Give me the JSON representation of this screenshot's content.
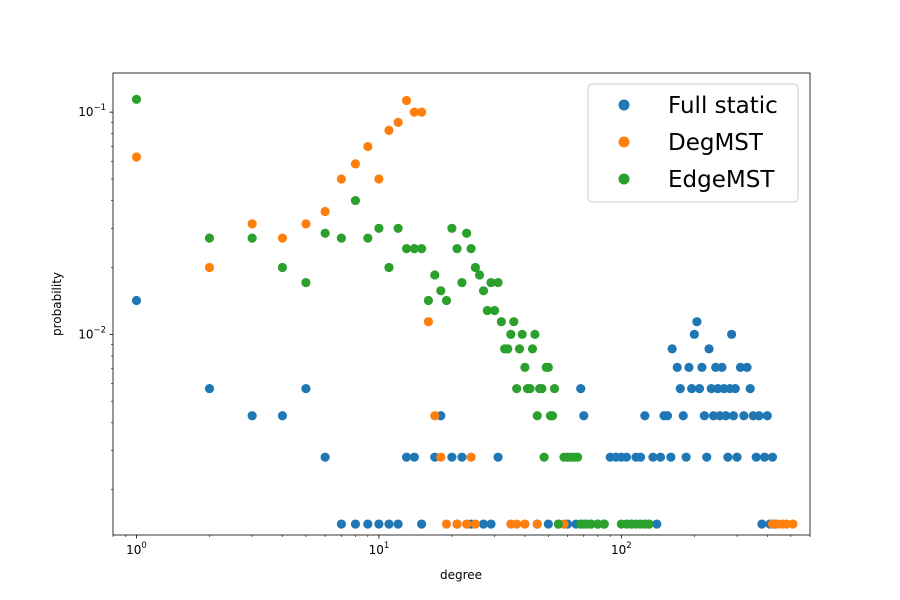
{
  "chart_data": {
    "type": "scatter",
    "title": "",
    "xlabel": "degree",
    "ylabel": "probability",
    "xscale": "log",
    "yscale": "log",
    "xlim": [
      0.8,
      600
    ],
    "ylim": [
      0.00125,
      0.15
    ],
    "grid": false,
    "legend_position": "top-right",
    "x_tick_labels": [
      {
        "value": 1,
        "base": "10",
        "exp": "0"
      },
      {
        "value": 10,
        "base": "10",
        "exp": "1"
      },
      {
        "value": 100,
        "base": "10",
        "exp": "2"
      }
    ],
    "y_tick_labels": [
      {
        "value": 0.01,
        "base": "10",
        "exp": "−2"
      },
      {
        "value": 0.1,
        "base": "10",
        "exp": "−1"
      }
    ],
    "series": [
      {
        "name": "Full static",
        "color": "#1f77b4",
        "points": [
          [
            1,
            0.0142
          ],
          [
            2,
            0.0057
          ],
          [
            3,
            0.0043
          ],
          [
            4,
            0.0043
          ],
          [
            5,
            0.0057
          ],
          [
            6,
            0.0028
          ],
          [
            7,
            0.0014
          ],
          [
            8,
            0.0014
          ],
          [
            9,
            0.0014
          ],
          [
            10,
            0.0014
          ],
          [
            11,
            0.0014
          ],
          [
            12,
            0.0014
          ],
          [
            13,
            0.0028
          ],
          [
            14,
            0.0028
          ],
          [
            15,
            0.0014
          ],
          [
            17,
            0.0028
          ],
          [
            18,
            0.0043
          ],
          [
            20,
            0.0028
          ],
          [
            21,
            0.0014
          ],
          [
            22,
            0.0028
          ],
          [
            24,
            0.0014
          ],
          [
            27,
            0.0014
          ],
          [
            29,
            0.0014
          ],
          [
            31,
            0.0028
          ],
          [
            45,
            0.0014
          ],
          [
            50,
            0.0014
          ],
          [
            55,
            0.0014
          ],
          [
            60,
            0.0014
          ],
          [
            65,
            0.0014
          ],
          [
            68,
            0.0057
          ],
          [
            70,
            0.0043
          ],
          [
            75,
            0.0014
          ],
          [
            80,
            0.0014
          ],
          [
            85,
            0.0014
          ],
          [
            90,
            0.0028
          ],
          [
            95,
            0.0028
          ],
          [
            100,
            0.0028
          ],
          [
            105,
            0.0028
          ],
          [
            110,
            0.0014
          ],
          [
            115,
            0.0028
          ],
          [
            120,
            0.0028
          ],
          [
            125,
            0.0043
          ],
          [
            130,
            0.0014
          ],
          [
            135,
            0.0028
          ],
          [
            140,
            0.0014
          ],
          [
            145,
            0.0028
          ],
          [
            150,
            0.0043
          ],
          [
            155,
            0.0043
          ],
          [
            160,
            0.0028
          ],
          [
            162,
            0.0086
          ],
          [
            170,
            0.0071
          ],
          [
            175,
            0.0057
          ],
          [
            180,
            0.0043
          ],
          [
            185,
            0.0028
          ],
          [
            190,
            0.0071
          ],
          [
            195,
            0.0057
          ],
          [
            200,
            0.01
          ],
          [
            205,
            0.0114
          ],
          [
            210,
            0.0057
          ],
          [
            215,
            0.0071
          ],
          [
            220,
            0.0043
          ],
          [
            225,
            0.0028
          ],
          [
            230,
            0.0086
          ],
          [
            235,
            0.0057
          ],
          [
            240,
            0.0043
          ],
          [
            245,
            0.0071
          ],
          [
            250,
            0.0057
          ],
          [
            255,
            0.0043
          ],
          [
            260,
            0.0071
          ],
          [
            265,
            0.0057
          ],
          [
            270,
            0.0043
          ],
          [
            275,
            0.0028
          ],
          [
            280,
            0.0057
          ],
          [
            285,
            0.01
          ],
          [
            290,
            0.0043
          ],
          [
            295,
            0.0057
          ],
          [
            300,
            0.0028
          ],
          [
            310,
            0.0071
          ],
          [
            320,
            0.0043
          ],
          [
            330,
            0.0071
          ],
          [
            340,
            0.0057
          ],
          [
            350,
            0.0043
          ],
          [
            360,
            0.0028
          ],
          [
            370,
            0.0043
          ],
          [
            380,
            0.0014
          ],
          [
            390,
            0.0028
          ],
          [
            400,
            0.0043
          ],
          [
            410,
            0.0014
          ],
          [
            420,
            0.0028
          ],
          [
            430,
            0.0014
          ]
        ]
      },
      {
        "name": "DegMST",
        "color": "#ff7f0e",
        "points": [
          [
            1,
            0.0628
          ],
          [
            2,
            0.02
          ],
          [
            3,
            0.0314
          ],
          [
            4,
            0.0271
          ],
          [
            5,
            0.0314
          ],
          [
            6,
            0.0357
          ],
          [
            7,
            0.05
          ],
          [
            8,
            0.0585
          ],
          [
            9,
            0.07
          ],
          [
            10,
            0.05
          ],
          [
            11,
            0.0828
          ],
          [
            12,
            0.0899
          ],
          [
            13,
            0.1128
          ],
          [
            14,
            0.1
          ],
          [
            15,
            0.1
          ],
          [
            16,
            0.0114
          ],
          [
            17,
            0.0043
          ],
          [
            18,
            0.0028
          ],
          [
            19,
            0.0014
          ],
          [
            21,
            0.0014
          ],
          [
            23,
            0.0014
          ],
          [
            24,
            0.0028
          ],
          [
            25,
            0.0014
          ],
          [
            35,
            0.0014
          ],
          [
            37,
            0.0014
          ],
          [
            40,
            0.0014
          ],
          [
            45,
            0.0014
          ],
          [
            58,
            0.0014
          ],
          [
            420,
            0.0014
          ],
          [
            440,
            0.0014
          ],
          [
            460,
            0.0014
          ],
          [
            480,
            0.0014
          ],
          [
            510,
            0.0014
          ]
        ]
      },
      {
        "name": "EdgeMST",
        "color": "#2ca02c",
        "points": [
          [
            1,
            0.1142
          ],
          [
            2,
            0.0271
          ],
          [
            3,
            0.0271
          ],
          [
            4,
            0.02
          ],
          [
            5,
            0.0171
          ],
          [
            6,
            0.0285
          ],
          [
            7,
            0.0271
          ],
          [
            8,
            0.04
          ],
          [
            9,
            0.0271
          ],
          [
            10,
            0.03
          ],
          [
            11,
            0.02
          ],
          [
            12,
            0.03
          ],
          [
            13,
            0.0243
          ],
          [
            14,
            0.0243
          ],
          [
            15,
            0.0243
          ],
          [
            16,
            0.0142
          ],
          [
            17,
            0.0185
          ],
          [
            18,
            0.0157
          ],
          [
            19,
            0.0142
          ],
          [
            20,
            0.03
          ],
          [
            21,
            0.0243
          ],
          [
            22,
            0.0171
          ],
          [
            23,
            0.0285
          ],
          [
            24,
            0.0243
          ],
          [
            25,
            0.02
          ],
          [
            26,
            0.0185
          ],
          [
            27,
            0.0157
          ],
          [
            28,
            0.0128
          ],
          [
            29,
            0.0171
          ],
          [
            30,
            0.0128
          ],
          [
            31,
            0.0171
          ],
          [
            32,
            0.0114
          ],
          [
            33,
            0.0086
          ],
          [
            34,
            0.0086
          ],
          [
            35,
            0.01
          ],
          [
            36,
            0.0114
          ],
          [
            37,
            0.0057
          ],
          [
            38,
            0.0086
          ],
          [
            39,
            0.01
          ],
          [
            40,
            0.0071
          ],
          [
            41,
            0.0057
          ],
          [
            42,
            0.0057
          ],
          [
            43,
            0.0086
          ],
          [
            44,
            0.01
          ],
          [
            45,
            0.0043
          ],
          [
            46,
            0.0057
          ],
          [
            47,
            0.0057
          ],
          [
            48,
            0.0028
          ],
          [
            49,
            0.0071
          ],
          [
            50,
            0.0071
          ],
          [
            51,
            0.0043
          ],
          [
            52,
            0.0043
          ],
          [
            53,
            0.0057
          ],
          [
            55,
            0.0014
          ],
          [
            58,
            0.0028
          ],
          [
            60,
            0.0028
          ],
          [
            62,
            0.0028
          ],
          [
            64,
            0.0028
          ],
          [
            66,
            0.0028
          ],
          [
            68,
            0.0014
          ],
          [
            70,
            0.0014
          ],
          [
            72,
            0.0014
          ],
          [
            75,
            0.0014
          ],
          [
            80,
            0.0014
          ],
          [
            85,
            0.0014
          ],
          [
            100,
            0.0014
          ],
          [
            105,
            0.0014
          ],
          [
            110,
            0.0014
          ],
          [
            115,
            0.0014
          ],
          [
            120,
            0.0014
          ],
          [
            125,
            0.0014
          ],
          [
            130,
            0.0014
          ]
        ]
      }
    ]
  }
}
